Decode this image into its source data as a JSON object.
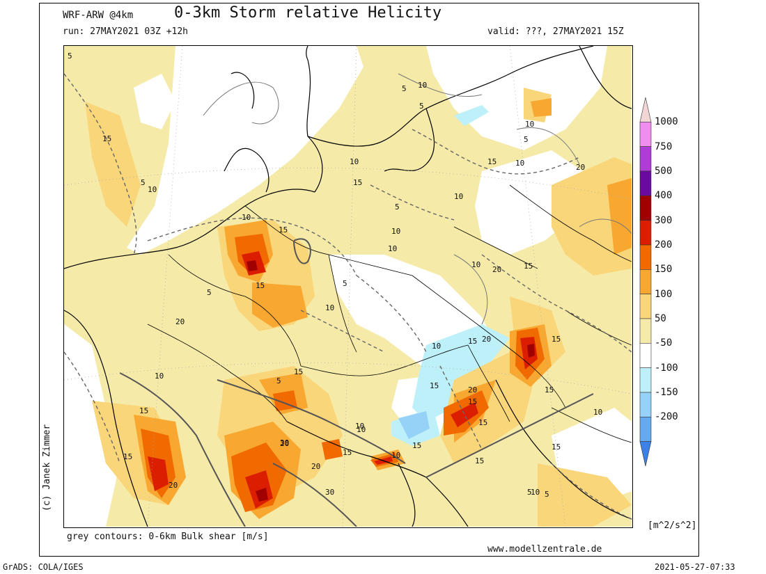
{
  "header": {
    "model": "WRF-ARW @4km",
    "title": "0-3km Storm relative Helicity",
    "run": "run: 27MAY2021 03Z +12h",
    "valid": "valid: ???, 27MAY2021 15Z"
  },
  "footer": {
    "contours_note": "grey contours: 0-6km Bulk shear [m/s]",
    "website": "www.modellzentrale.de",
    "credit": "(c) Janek Zimmer",
    "software": "GrADS: COLA/IGES",
    "timestamp": "2021-05-27-07:33"
  },
  "colorbar": {
    "units": "[m^2/s^2]",
    "labels": [
      "1000",
      "750",
      "500",
      "400",
      "300",
      "200",
      "150",
      "100",
      "50",
      "-50",
      "-100",
      "-150",
      "-200"
    ],
    "colors": [
      "#f2d5d5",
      "#f08ef0",
      "#b03cd8",
      "#6a0aa0",
      "#a00000",
      "#dc1e00",
      "#f06a00",
      "#f8a830",
      "#fad67a",
      "#f5eaa8",
      "#ffffff",
      "#bdf0f8",
      "#96d2f8",
      "#64aaf0",
      "#3c82e6"
    ]
  },
  "map": {
    "contour_labels": [
      "5",
      "5",
      "10",
      "5",
      "10",
      "5",
      "15",
      "10",
      "15",
      "10",
      "5",
      "10",
      "20",
      "15",
      "10",
      "5",
      "15",
      "10",
      "20",
      "15",
      "15",
      "10",
      "5",
      "10",
      "5",
      "10",
      "20",
      "15",
      "10",
      "15",
      "5",
      "15",
      "10",
      "15",
      "20",
      "15",
      "15",
      "20",
      "10",
      "15",
      "20",
      "30",
      "15",
      "15",
      "10",
      "10",
      "30",
      "20",
      "15",
      "20",
      "15",
      "10",
      "10",
      "5",
      "15",
      "15",
      "5",
      "10"
    ]
  }
}
